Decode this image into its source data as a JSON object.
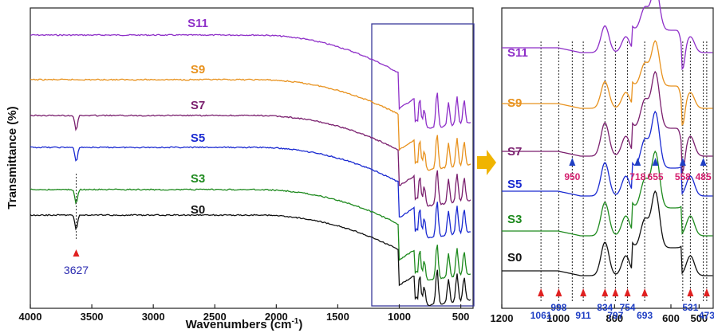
{
  "chart_data": [
    {
      "type": "line",
      "title": "",
      "xlabel": "Wavenumbers (cm",
      "xlabel_sup": "-1",
      "xlabel_tail": ")",
      "ylabel": "Transmittance (%)",
      "xlim": [
        4000,
        400
      ],
      "xticks": [
        "4000",
        "3500",
        "3000",
        "2500",
        "2000",
        "1500",
        "1000",
        "500"
      ],
      "series": [
        {
          "name": "S11",
          "color": "#8e2fc8"
        },
        {
          "name": "S9",
          "color": "#e8921e"
        },
        {
          "name": "S7",
          "color": "#7a1f6e"
        },
        {
          "name": "S5",
          "color": "#1a2ad1"
        },
        {
          "name": "S3",
          "color": "#1e8a1e"
        },
        {
          "name": "S0",
          "color": "#111111"
        }
      ],
      "annotations": [
        {
          "text": "3627",
          "x": 3627,
          "color": "#2a2ab0"
        }
      ],
      "inset_box": {
        "x_range": [
          1230,
          420
        ]
      }
    },
    {
      "type": "line",
      "title": "",
      "xlim": [
        1200,
        450
      ],
      "xticks": [
        "1200",
        "1000",
        "800",
        "600",
        "500"
      ],
      "xtick_values": [
        1200,
        1000,
        800,
        600,
        500
      ],
      "series": [
        {
          "name": "S11",
          "color": "#8e2fc8"
        },
        {
          "name": "S9",
          "color": "#e8921e"
        },
        {
          "name": "S7",
          "color": "#7a1f6e"
        },
        {
          "name": "S5",
          "color": "#1a2ad1"
        },
        {
          "name": "S3",
          "color": "#1e8a1e"
        },
        {
          "name": "S0",
          "color": "#111111"
        }
      ],
      "reference_lines": [
        1061,
        998,
        950,
        911,
        834,
        797,
        754,
        693,
        558,
        531,
        485,
        473
      ],
      "peak_labels_S0": [
        {
          "text": "1061",
          "x": 1061
        },
        {
          "text": "998",
          "x": 998
        },
        {
          "text": "911",
          "x": 911
        },
        {
          "text": "834",
          "x": 834
        },
        {
          "text": "797",
          "x": 797
        },
        {
          "text": "754",
          "x": 754
        },
        {
          "text": "693",
          "x": 693
        },
        {
          "text": "531",
          "x": 531
        },
        {
          "text": "473",
          "x": 473
        }
      ],
      "peak_labels_S7": [
        {
          "text": "950",
          "x": 950
        },
        {
          "text": "718",
          "x": 718
        },
        {
          "text": "655",
          "x": 655
        },
        {
          "text": "558",
          "x": 558
        },
        {
          "text": "485",
          "x": 485
        }
      ]
    }
  ],
  "colors": {
    "frame": "#222222",
    "box": "#3a3a9a",
    "arrow": "#f0b400",
    "red_arrow": "#e02020",
    "blue_arrow": "#1f3fc4",
    "blue_text": "#1f3fc4",
    "pink_text": "#d41f6e"
  }
}
